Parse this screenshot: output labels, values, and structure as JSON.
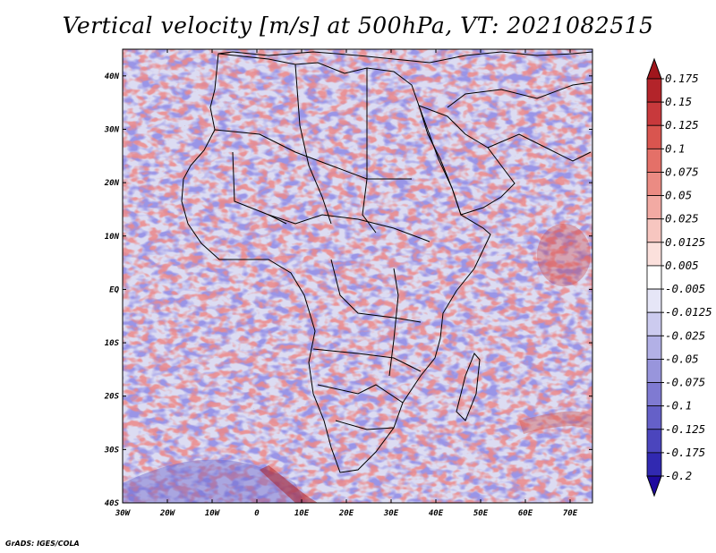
{
  "title": "Vertical velocity [m/s] at 500hPa, VT: 2021082515",
  "credit": "GrADS: IGES/COLA",
  "map": {
    "region": "Africa",
    "variable": "Vertical velocity",
    "units": "m/s",
    "level": "500hPa",
    "valid_time": "2021082515",
    "lon_range": [
      -30,
      75
    ],
    "lat_range": [
      -40,
      45
    ],
    "lon_labels": [
      "30W",
      "20W",
      "10W",
      "0",
      "10E",
      "20E",
      "30E",
      "40E",
      "50E",
      "60E",
      "70E"
    ],
    "lat_labels": [
      "40N",
      "30N",
      "20N",
      "10N",
      "EQ",
      "10S",
      "20S",
      "30S",
      "40S"
    ]
  },
  "legend": {
    "labels": [
      "0.175",
      "0.15",
      "0.125",
      "0.1",
      "0.075",
      "0.05",
      "0.025",
      "0.0125",
      "0.005",
      "-0.005",
      "-0.0125",
      "-0.025",
      "-0.05",
      "-0.075",
      "-0.1",
      "-0.125",
      "-0.175",
      "-0.2"
    ],
    "colors": {
      "top_arrow": "#a0161c",
      "bottom_arrow": "#1f0a9e",
      "boxes": [
        "#b3242a",
        "#c8393c",
        "#d9554f",
        "#e47068",
        "#eb8b83",
        "#f2aaa3",
        "#f7c6c0",
        "#fbe0dc",
        "#ffffff",
        "#e6e6f7",
        "#cccbef",
        "#b2b0e6",
        "#9895dc",
        "#7f7ad2",
        "#6560c8",
        "#4b45bd",
        "#3129b1"
      ]
    }
  },
  "colors": {
    "positive": "#d9413c",
    "negative": "#5a55c9",
    "background_field": "#dcdcf2"
  }
}
